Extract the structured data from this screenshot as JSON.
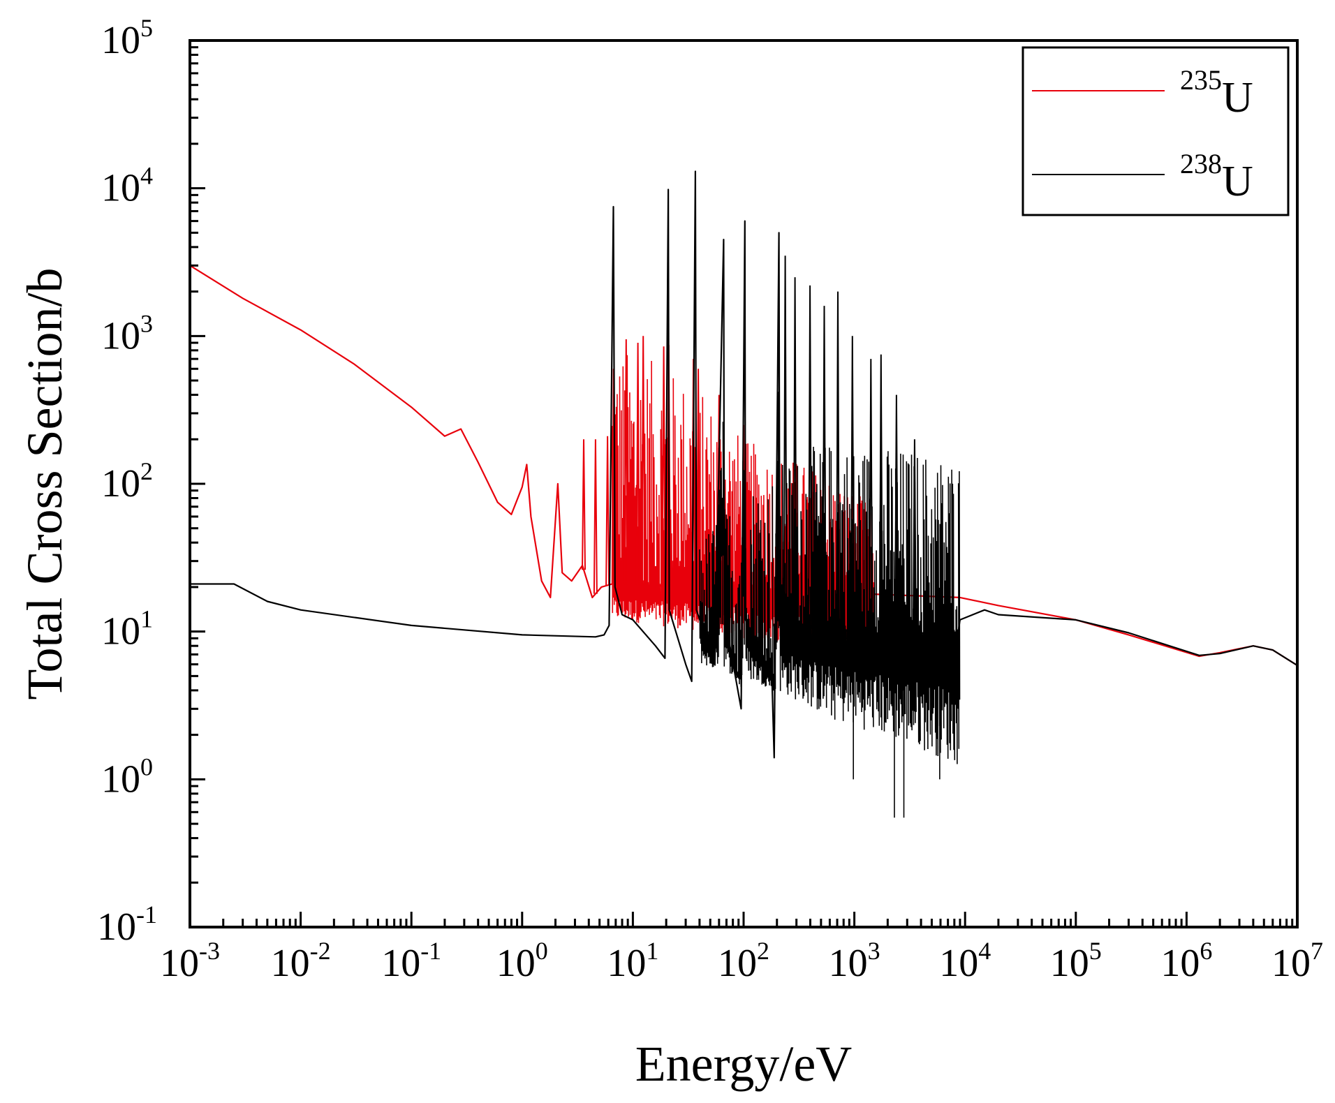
{
  "chart_data": {
    "type": "line",
    "title": "",
    "xlabel": "Energy/eV",
    "ylabel": "Total Cross Section/b",
    "xscale": "log",
    "yscale": "log",
    "xlim": [
      0.001,
      10000000
    ],
    "ylim": [
      0.1,
      100000
    ],
    "grid": false,
    "x_ticks": [
      {
        "base": "10",
        "exp": "-3",
        "value": 0.001
      },
      {
        "base": "10",
        "exp": "-2",
        "value": 0.01
      },
      {
        "base": "10",
        "exp": "-1",
        "value": 0.1
      },
      {
        "base": "10",
        "exp": "0",
        "value": 1
      },
      {
        "base": "10",
        "exp": "1",
        "value": 10
      },
      {
        "base": "10",
        "exp": "2",
        "value": 100
      },
      {
        "base": "10",
        "exp": "3",
        "value": 1000
      },
      {
        "base": "10",
        "exp": "4",
        "value": 10000
      },
      {
        "base": "10",
        "exp": "5",
        "value": 100000
      },
      {
        "base": "10",
        "exp": "6",
        "value": 1000000
      },
      {
        "base": "10",
        "exp": "7",
        "value": 10000000
      }
    ],
    "y_ticks": [
      {
        "base": "10",
        "exp": "-1",
        "value": 0.1
      },
      {
        "base": "10",
        "exp": "0",
        "value": 1
      },
      {
        "base": "10",
        "exp": "1",
        "value": 10
      },
      {
        "base": "10",
        "exp": "2",
        "value": 100
      },
      {
        "base": "10",
        "exp": "3",
        "value": 1000
      },
      {
        "base": "10",
        "exp": "4",
        "value": 10000
      },
      {
        "base": "10",
        "exp": "5",
        "value": 100000
      }
    ],
    "legend_position": "top-right",
    "series": [
      {
        "name": "235U",
        "legend_mass": "235",
        "legend_symbol": "U",
        "color": "#e8000b",
        "smooth": [
          [
            0.001,
            3000
          ],
          [
            0.003,
            1800
          ],
          [
            0.01,
            1100
          ],
          [
            0.03,
            650
          ],
          [
            0.1,
            330
          ],
          [
            0.2,
            210
          ],
          [
            0.28,
            235
          ],
          [
            0.4,
            140
          ],
          [
            0.6,
            75
          ],
          [
            0.8,
            62
          ],
          [
            1.0,
            95
          ],
          [
            1.1,
            135
          ],
          [
            1.2,
            60
          ],
          [
            1.5,
            22
          ],
          [
            1.8,
            17
          ],
          [
            2.1,
            100
          ],
          [
            2.3,
            25
          ],
          [
            2.8,
            22
          ],
          [
            3.5,
            28
          ],
          [
            4.3,
            17
          ],
          [
            5.2,
            20
          ],
          [
            6.5,
            21
          ],
          [
            9000,
            17
          ],
          [
            20000,
            15
          ],
          [
            100000,
            12
          ],
          [
            300000,
            9.5
          ],
          [
            1300000,
            6.8
          ],
          [
            2000000,
            7.2
          ],
          [
            4000000,
            8
          ],
          [
            6000000,
            7.5
          ],
          [
            10000000,
            5.9
          ]
        ],
        "noise": {
          "x_from": 6.5,
          "x_to": 1500,
          "y_low": [
            12,
            9,
            7
          ],
          "y_high": [
            900,
            200,
            70
          ]
        },
        "peaks": [
          [
            3.6,
            200
          ],
          [
            4.6,
            200
          ],
          [
            5.9,
            210
          ],
          [
            6.7,
            600
          ],
          [
            8.7,
            950
          ],
          [
            11.1,
            900
          ],
          [
            12.4,
            1000
          ],
          [
            19,
            850
          ],
          [
            21.1,
            870
          ],
          [
            35.2,
            700
          ],
          [
            39,
            600
          ],
          [
            60,
            400
          ],
          [
            100,
            250
          ]
        ]
      },
      {
        "name": "238U",
        "legend_mass": "238",
        "legend_symbol": "U",
        "color": "#000000",
        "smooth": [
          [
            0.001,
            21
          ],
          [
            0.0025,
            21
          ],
          [
            0.005,
            16
          ],
          [
            0.01,
            14
          ],
          [
            0.1,
            11
          ],
          [
            1,
            9.5
          ],
          [
            4.6,
            9.2
          ],
          [
            5.5,
            9.5
          ],
          [
            6.1,
            11
          ],
          [
            6.67,
            7500
          ],
          [
            6.9,
            20
          ],
          [
            8,
            13
          ],
          [
            10,
            12
          ],
          [
            16,
            8
          ],
          [
            19.5,
            6.6
          ],
          [
            20.87,
            9800
          ],
          [
            21.3,
            14
          ],
          [
            30,
            6
          ],
          [
            34,
            4.6
          ],
          [
            36.68,
            13000
          ],
          [
            37.5,
            14
          ],
          [
            55,
            6
          ],
          [
            66.03,
            4500
          ],
          [
            67,
            13
          ],
          [
            95,
            3
          ],
          [
            102.6,
            6000
          ],
          [
            104,
            12
          ],
          [
            180,
            5
          ],
          [
            189,
            1.4
          ],
          [
            208.5,
            5000
          ],
          [
            212,
            11
          ],
          [
            1000,
            10
          ],
          [
            8500,
            9
          ],
          [
            9000,
            12
          ],
          [
            15000,
            14
          ],
          [
            20000,
            13
          ],
          [
            100000,
            12
          ],
          [
            300000,
            9.8
          ],
          [
            1300000,
            6.9
          ],
          [
            2000000,
            7.1
          ],
          [
            4000000,
            8
          ],
          [
            6000000,
            7.5
          ],
          [
            10000000,
            5.9
          ]
        ],
        "noise": {
          "x_from": 40,
          "x_to": 9000,
          "y_low": [
            6,
            2.5,
            1.2
          ],
          "y_high": [
            40,
            200,
            160
          ]
        },
        "peaks": [
          [
            237.4,
            3500
          ],
          [
            291,
            2500
          ],
          [
            398,
            2200
          ],
          [
            535,
            1600
          ],
          [
            710,
            2000
          ],
          [
            960,
            1000
          ],
          [
            1410,
            700
          ],
          [
            1740,
            750
          ],
          [
            2400,
            400
          ],
          [
            3500,
            200
          ]
        ],
        "dips": [
          [
            980,
            1.0
          ],
          [
            2300,
            0.55
          ],
          [
            2800,
            0.55
          ],
          [
            5900,
            1.0
          ]
        ]
      }
    ]
  }
}
